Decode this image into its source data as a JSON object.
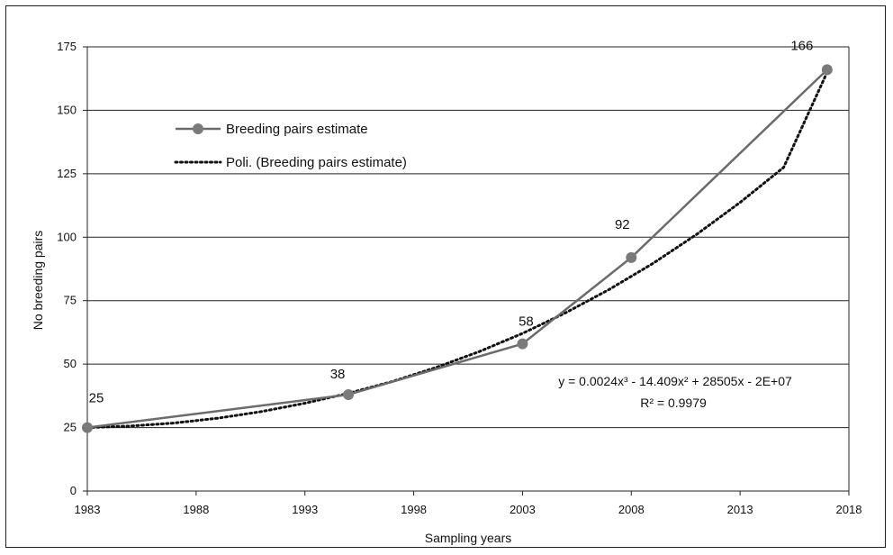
{
  "chart_data": {
    "type": "line",
    "xlabel": "Sampling years",
    "ylabel": "No breeding pairs",
    "xlim": [
      1983,
      2018
    ],
    "ylim": [
      0,
      175
    ],
    "x_ticks": [
      1983,
      1988,
      1993,
      1998,
      2003,
      2008,
      2013,
      2018
    ],
    "y_ticks": [
      0,
      25,
      50,
      75,
      100,
      125,
      150,
      175
    ],
    "grid": "horizontal",
    "legend_position": "top-left",
    "series": [
      {
        "name": "Breeding pairs estimate",
        "x": [
          1983,
          1995,
          2003,
          2008,
          2017
        ],
        "values": [
          25,
          38,
          58,
          92,
          166
        ],
        "data_labels": [
          "25",
          "38",
          "58",
          "92",
          "166"
        ],
        "color": "#6b6b6b",
        "marker": "circle"
      },
      {
        "name": "Poli. (Breeding pairs estimate)",
        "x": [
          1983,
          1985,
          1987,
          1989,
          1991,
          1993,
          1995,
          1997,
          1999,
          2001,
          2003,
          2005,
          2007,
          2009,
          2011,
          2013,
          2015,
          2017
        ],
        "values": [
          25,
          25.6,
          26.8,
          28.7,
          31.3,
          34.6,
          38.5,
          43.1,
          48.6,
          54.9,
          62.1,
          70.3,
          79.5,
          89.7,
          101.1,
          113.7,
          127.5,
          165
        ],
        "color": "#111111",
        "style": "dotted"
      }
    ],
    "annotations": {
      "equation": "y = 0.0024x³ - 14.409x² + 28505x - 2E+07",
      "r_squared": "R² = 0.9979"
    }
  }
}
